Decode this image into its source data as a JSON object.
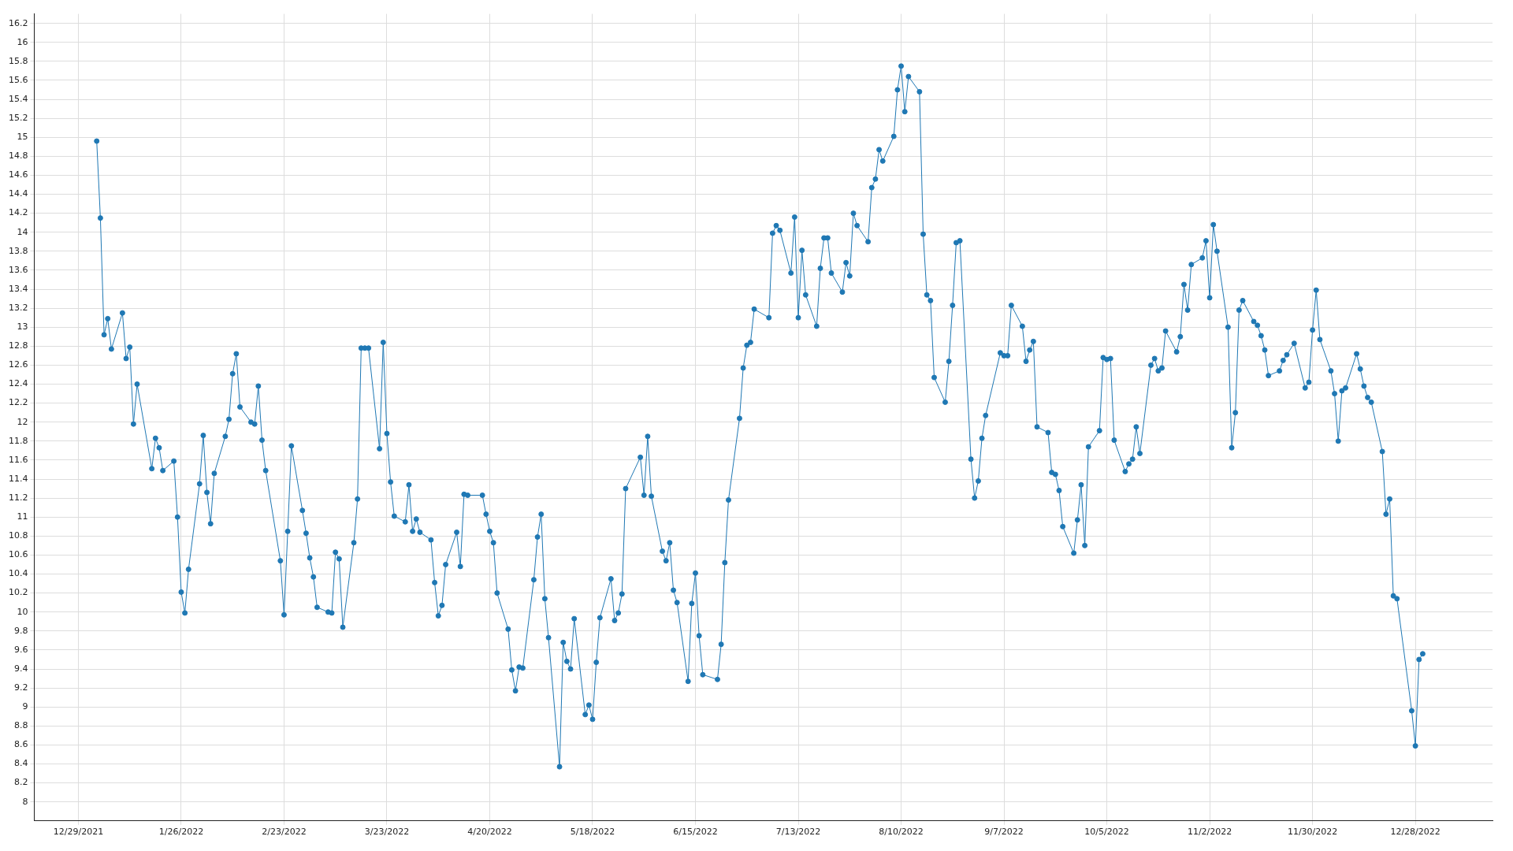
{
  "chart_data": {
    "type": "line",
    "marker": "circle",
    "grid": true,
    "legend": false,
    "xlim": [
      "2021-12-17",
      "2023-01-18"
    ],
    "xticks": [
      {
        "value": "2021-12-29",
        "label": "12/29/2021"
      },
      {
        "value": "2022-01-26",
        "label": "1/26/2022"
      },
      {
        "value": "2022-02-23",
        "label": "2/23/2022"
      },
      {
        "value": "2022-03-23",
        "label": "3/23/2022"
      },
      {
        "value": "2022-04-20",
        "label": "4/20/2022"
      },
      {
        "value": "2022-05-18",
        "label": "5/18/2022"
      },
      {
        "value": "2022-06-15",
        "label": "6/15/2022"
      },
      {
        "value": "2022-07-13",
        "label": "7/13/2022"
      },
      {
        "value": "2022-08-10",
        "label": "8/10/2022"
      },
      {
        "value": "2022-09-07",
        "label": "9/7/2022"
      },
      {
        "value": "2022-10-05",
        "label": "10/5/2022"
      },
      {
        "value": "2022-11-02",
        "label": "11/2/2022"
      },
      {
        "value": "2022-11-30",
        "label": "11/30/2022"
      },
      {
        "value": "2022-12-28",
        "label": "12/28/2022"
      }
    ],
    "ylim": [
      7.8,
      16.3
    ],
    "yticks": [
      8,
      8.2,
      8.4,
      8.6,
      8.8,
      9,
      9.2,
      9.4,
      9.6,
      9.8,
      10,
      10.2,
      10.4,
      10.6,
      10.8,
      11,
      11.2,
      11.4,
      11.6,
      11.8,
      12,
      12.2,
      12.4,
      12.6,
      12.8,
      13,
      13.2,
      13.4,
      13.6,
      13.8,
      14,
      14.2,
      14.4,
      14.6,
      14.8,
      15,
      15.2,
      15.4,
      15.6,
      15.8,
      16,
      16.2
    ],
    "x": [
      "2022-01-03",
      "2022-01-04",
      "2022-01-05",
      "2022-01-06",
      "2022-01-07",
      "2022-01-10",
      "2022-01-11",
      "2022-01-12",
      "2022-01-13",
      "2022-01-14",
      "2022-01-18",
      "2022-01-19",
      "2022-01-20",
      "2022-01-21",
      "2022-01-24",
      "2022-01-25",
      "2022-01-26",
      "2022-01-27",
      "2022-01-28",
      "2022-01-31",
      "2022-02-01",
      "2022-02-02",
      "2022-02-03",
      "2022-02-04",
      "2022-02-07",
      "2022-02-08",
      "2022-02-09",
      "2022-02-10",
      "2022-02-11",
      "2022-02-14",
      "2022-02-15",
      "2022-02-16",
      "2022-02-17",
      "2022-02-18",
      "2022-02-22",
      "2022-02-23",
      "2022-02-24",
      "2022-02-25",
      "2022-02-28",
      "2022-03-01",
      "2022-03-02",
      "2022-03-03",
      "2022-03-04",
      "2022-03-07",
      "2022-03-08",
      "2022-03-09",
      "2022-03-10",
      "2022-03-11",
      "2022-03-14",
      "2022-03-15",
      "2022-03-16",
      "2022-03-17",
      "2022-03-18",
      "2022-03-21",
      "2022-03-22",
      "2022-03-23",
      "2022-03-24",
      "2022-03-25",
      "2022-03-28",
      "2022-03-29",
      "2022-03-30",
      "2022-03-31",
      "2022-04-01",
      "2022-04-04",
      "2022-04-05",
      "2022-04-06",
      "2022-04-07",
      "2022-04-08",
      "2022-04-11",
      "2022-04-12",
      "2022-04-13",
      "2022-04-14",
      "2022-04-18",
      "2022-04-19",
      "2022-04-20",
      "2022-04-21",
      "2022-04-22",
      "2022-04-25",
      "2022-04-26",
      "2022-04-27",
      "2022-04-28",
      "2022-04-29",
      "2022-05-02",
      "2022-05-03",
      "2022-05-04",
      "2022-05-05",
      "2022-05-06",
      "2022-05-09",
      "2022-05-10",
      "2022-05-11",
      "2022-05-12",
      "2022-05-13",
      "2022-05-16",
      "2022-05-17",
      "2022-05-18",
      "2022-05-19",
      "2022-05-20",
      "2022-05-23",
      "2022-05-24",
      "2022-05-25",
      "2022-05-26",
      "2022-05-27",
      "2022-05-31",
      "2022-06-01",
      "2022-06-02",
      "2022-06-03",
      "2022-06-06",
      "2022-06-07",
      "2022-06-08",
      "2022-06-09",
      "2022-06-10",
      "2022-06-13",
      "2022-06-14",
      "2022-06-15",
      "2022-06-16",
      "2022-06-17",
      "2022-06-21",
      "2022-06-22",
      "2022-06-23",
      "2022-06-24",
      "2022-06-27",
      "2022-06-28",
      "2022-06-29",
      "2022-06-30",
      "2022-07-01",
      "2022-07-05",
      "2022-07-06",
      "2022-07-07",
      "2022-07-08",
      "2022-07-11",
      "2022-07-12",
      "2022-07-13",
      "2022-07-14",
      "2022-07-15",
      "2022-07-18",
      "2022-07-19",
      "2022-07-20",
      "2022-07-21",
      "2022-07-22",
      "2022-07-25",
      "2022-07-26",
      "2022-07-27",
      "2022-07-28",
      "2022-07-29",
      "2022-08-01",
      "2022-08-02",
      "2022-08-03",
      "2022-08-04",
      "2022-08-05",
      "2022-08-08",
      "2022-08-09",
      "2022-08-10",
      "2022-08-11",
      "2022-08-12",
      "2022-08-15",
      "2022-08-16",
      "2022-08-17",
      "2022-08-18",
      "2022-08-19",
      "2022-08-22",
      "2022-08-23",
      "2022-08-24",
      "2022-08-25",
      "2022-08-26",
      "2022-08-29",
      "2022-08-30",
      "2022-08-31",
      "2022-09-01",
      "2022-09-02",
      "2022-09-06",
      "2022-09-07",
      "2022-09-08",
      "2022-09-09",
      "2022-09-12",
      "2022-09-13",
      "2022-09-14",
      "2022-09-15",
      "2022-09-16",
      "2022-09-19",
      "2022-09-20",
      "2022-09-21",
      "2022-09-22",
      "2022-09-23",
      "2022-09-26",
      "2022-09-27",
      "2022-09-28",
      "2022-09-29",
      "2022-09-30",
      "2022-10-03",
      "2022-10-04",
      "2022-10-05",
      "2022-10-06",
      "2022-10-07",
      "2022-10-10",
      "2022-10-11",
      "2022-10-12",
      "2022-10-13",
      "2022-10-14",
      "2022-10-17",
      "2022-10-18",
      "2022-10-19",
      "2022-10-20",
      "2022-10-21",
      "2022-10-24",
      "2022-10-25",
      "2022-10-26",
      "2022-10-27",
      "2022-10-28",
      "2022-10-31",
      "2022-11-01",
      "2022-11-02",
      "2022-11-03",
      "2022-11-04",
      "2022-11-07",
      "2022-11-08",
      "2022-11-09",
      "2022-11-10",
      "2022-11-11",
      "2022-11-14",
      "2022-11-15",
      "2022-11-16",
      "2022-11-17",
      "2022-11-18",
      "2022-11-21",
      "2022-11-22",
      "2022-11-23",
      "2022-11-25",
      "2022-11-28",
      "2022-11-29",
      "2022-11-30",
      "2022-12-01",
      "2022-12-02",
      "2022-12-05",
      "2022-12-06",
      "2022-12-07",
      "2022-12-08",
      "2022-12-09",
      "2022-12-12",
      "2022-12-13",
      "2022-12-14",
      "2022-12-15",
      "2022-12-16",
      "2022-12-19",
      "2022-12-20",
      "2022-12-21",
      "2022-12-22",
      "2022-12-23",
      "2022-12-27",
      "2022-12-28",
      "2022-12-29",
      "2022-12-30"
    ],
    "series": [
      {
        "color": "#1f78b4",
        "values": [
          14.96,
          14.15,
          12.92,
          13.09,
          12.77,
          13.15,
          12.67,
          12.79,
          11.98,
          12.4,
          11.51,
          11.83,
          11.73,
          11.49,
          11.59,
          11.0,
          10.21,
          9.99,
          10.45,
          11.35,
          11.86,
          11.26,
          10.93,
          11.46,
          11.85,
          12.03,
          12.51,
          12.72,
          12.16,
          12.0,
          11.98,
          12.38,
          11.81,
          11.49,
          10.54,
          9.97,
          10.85,
          11.75,
          11.07,
          10.83,
          10.57,
          10.37,
          10.05,
          10.0,
          9.99,
          10.63,
          10.56,
          9.84,
          10.73,
          11.19,
          12.78,
          12.78,
          12.78,
          11.72,
          12.84,
          11.88,
          11.37,
          11.01,
          10.95,
          11.34,
          10.85,
          10.98,
          10.84,
          10.76,
          10.31,
          9.96,
          10.07,
          10.5,
          10.84,
          10.48,
          11.24,
          11.23,
          11.23,
          11.03,
          10.85,
          10.73,
          10.2,
          9.82,
          9.39,
          9.17,
          9.42,
          9.41,
          10.34,
          10.79,
          11.03,
          10.14,
          9.73,
          8.37,
          9.68,
          9.48,
          9.4,
          9.93,
          8.92,
          9.02,
          8.87,
          9.47,
          9.94,
          10.35,
          9.91,
          9.99,
          10.19,
          11.3,
          11.63,
          11.23,
          11.85,
          11.22,
          10.64,
          10.54,
          10.73,
          10.23,
          10.1,
          9.27,
          10.09,
          10.41,
          9.75,
          9.34,
          9.29,
          9.66,
          10.52,
          11.18,
          12.04,
          12.57,
          12.81,
          12.84,
          13.19,
          13.1,
          13.99,
          14.07,
          14.02,
          13.57,
          14.16,
          13.1,
          13.81,
          13.34,
          13.01,
          13.62,
          13.94,
          13.94,
          13.57,
          13.37,
          13.68,
          13.54,
          14.2,
          14.07,
          13.9,
          14.47,
          14.56,
          14.87,
          14.75,
          15.01,
          15.5,
          15.75,
          15.27,
          15.64,
          15.48,
          13.98,
          13.34,
          13.28,
          12.47,
          12.21,
          12.64,
          13.23,
          13.89,
          13.91,
          11.61,
          11.2,
          11.38,
          11.83,
          12.07,
          12.73,
          12.7,
          12.7,
          13.23,
          13.01,
          12.64,
          12.76,
          12.85,
          11.95,
          11.89,
          11.47,
          11.45,
          11.28,
          10.9,
          10.62,
          10.97,
          11.34,
          10.7,
          11.74,
          11.91,
          12.68,
          12.66,
          12.67,
          11.81,
          11.48,
          11.56,
          11.61,
          11.95,
          11.67,
          12.6,
          12.67,
          12.54,
          12.57,
          12.96,
          12.74,
          12.9,
          13.45,
          13.18,
          13.66,
          13.73,
          13.91,
          13.31,
          14.08,
          13.8,
          13.0,
          11.73,
          12.1,
          13.18,
          13.28,
          13.06,
          13.02,
          12.91,
          12.76,
          12.49,
          12.54,
          12.65,
          12.71,
          12.83,
          12.36,
          12.42,
          12.97,
          13.39,
          12.87,
          12.54,
          12.3,
          11.8,
          12.33,
          12.36,
          12.72,
          12.56,
          12.38,
          12.26,
          12.21,
          11.69,
          11.03,
          11.19,
          10.17,
          10.14,
          8.96,
          8.59,
          9.5,
          9.56
        ]
      }
    ]
  }
}
